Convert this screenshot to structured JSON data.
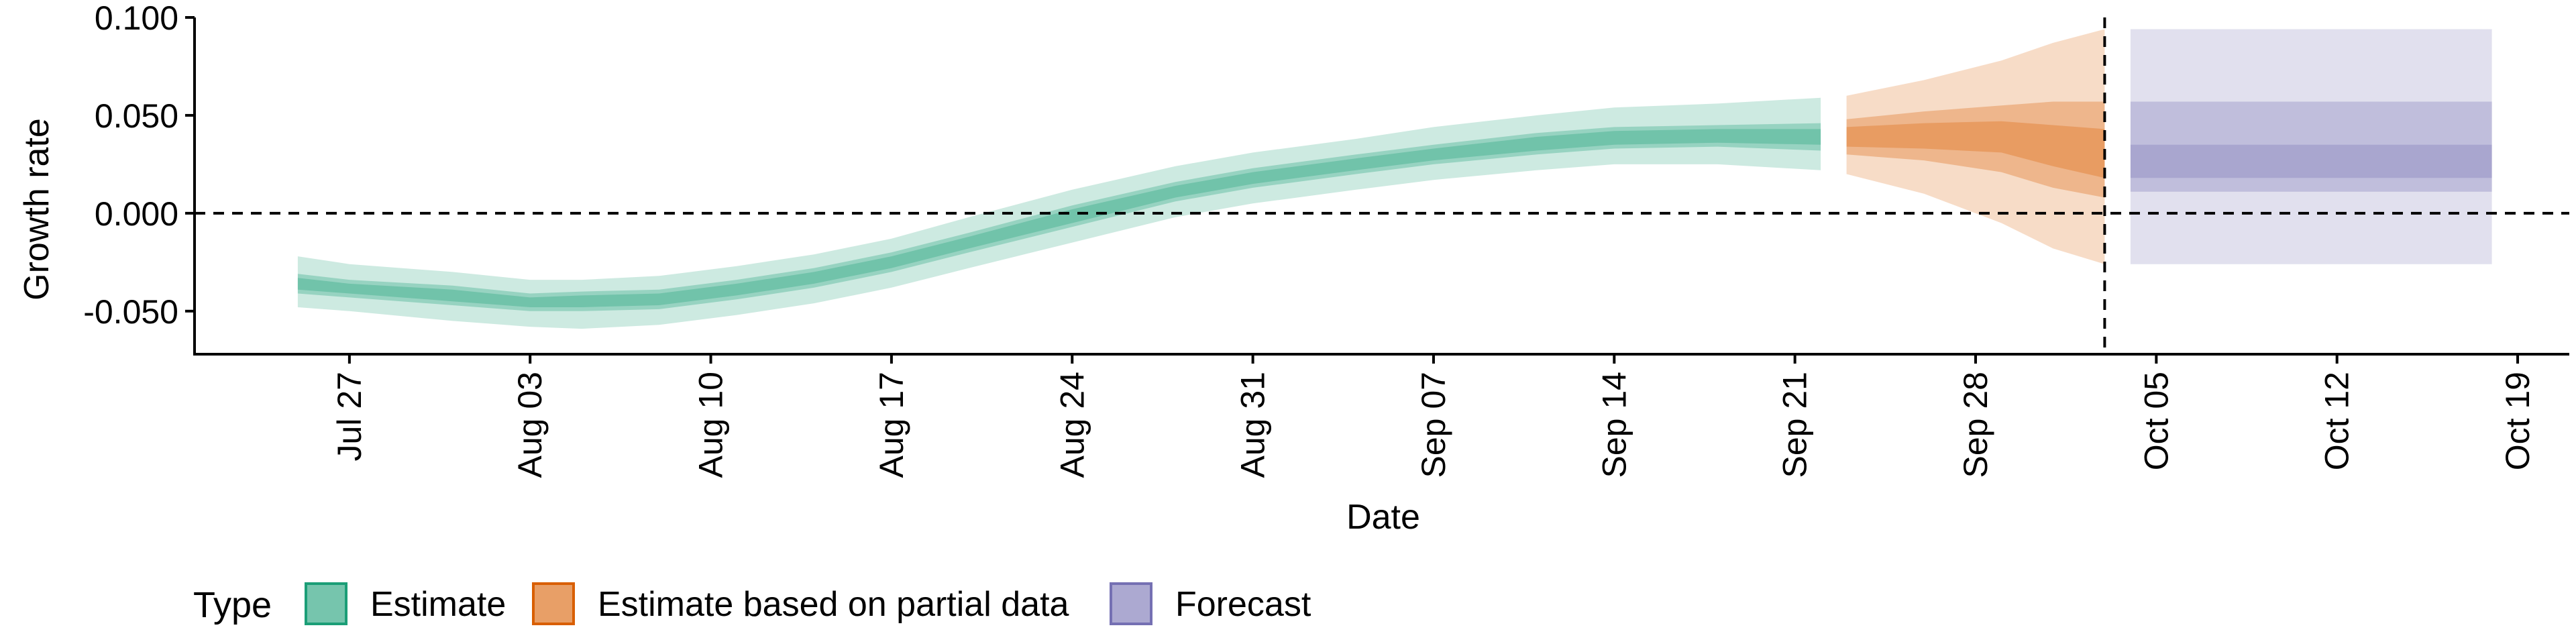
{
  "chart_data": {
    "type": "area",
    "xlabel": "Date",
    "ylabel": "Growth rate",
    "x_axis_type": "date",
    "xlim": [
      "2020-07-21",
      "2020-10-21"
    ],
    "ylim": [
      -0.072,
      0.1
    ],
    "x_ticks": [
      {
        "date": "2020-07-27",
        "label": "Jul 27"
      },
      {
        "date": "2020-08-03",
        "label": "Aug 03"
      },
      {
        "date": "2020-08-10",
        "label": "Aug 10"
      },
      {
        "date": "2020-08-17",
        "label": "Aug 17"
      },
      {
        "date": "2020-08-24",
        "label": "Aug 24"
      },
      {
        "date": "2020-08-31",
        "label": "Aug 31"
      },
      {
        "date": "2020-09-07",
        "label": "Sep 07"
      },
      {
        "date": "2020-09-14",
        "label": "Sep 14"
      },
      {
        "date": "2020-09-21",
        "label": "Sep 21"
      },
      {
        "date": "2020-09-28",
        "label": "Sep 28"
      },
      {
        "date": "2020-10-05",
        "label": "Oct 05"
      },
      {
        "date": "2020-10-12",
        "label": "Oct 12"
      },
      {
        "date": "2020-10-19",
        "label": "Oct 19"
      }
    ],
    "y_ticks": [
      {
        "value": -0.05,
        "label": "-0.050"
      },
      {
        "value": 0.0,
        "label": "0.000"
      },
      {
        "value": 0.05,
        "label": "0.050"
      },
      {
        "value": 0.1,
        "label": "0.100"
      }
    ],
    "reference_lines": {
      "horizontal_dashed_y": 0.0,
      "vertical_dashed_date": "2020-10-03"
    },
    "legend": {
      "title": "Type",
      "position": "bottom",
      "items": [
        {
          "label": "Estimate",
          "color": "#1b9e77"
        },
        {
          "label": "Estimate based on partial data",
          "color": "#d95f02"
        },
        {
          "label": "Forecast",
          "color": "#7570b3"
        }
      ]
    },
    "series": [
      {
        "name": "Estimate",
        "color": "#1b9e77",
        "points": [
          {
            "date": "2020-07-25",
            "outer": [
              -0.048,
              -0.022
            ],
            "inner": [
              -0.041,
              -0.031
            ],
            "core": [
              -0.039,
              -0.033
            ]
          },
          {
            "date": "2020-07-27",
            "outer": [
              -0.05,
              -0.026
            ],
            "inner": [
              -0.043,
              -0.034
            ],
            "core": [
              -0.041,
              -0.036
            ]
          },
          {
            "date": "2020-07-31",
            "outer": [
              -0.055,
              -0.03
            ],
            "inner": [
              -0.047,
              -0.037
            ],
            "core": [
              -0.045,
              -0.039
            ]
          },
          {
            "date": "2020-08-03",
            "outer": [
              -0.058,
              -0.034
            ],
            "inner": [
              -0.05,
              -0.041
            ],
            "core": [
              -0.048,
              -0.043
            ]
          },
          {
            "date": "2020-08-05",
            "outer": [
              -0.059,
              -0.034
            ],
            "inner": [
              -0.05,
              -0.04
            ],
            "core": [
              -0.048,
              -0.042
            ]
          },
          {
            "date": "2020-08-08",
            "outer": [
              -0.057,
              -0.032
            ],
            "inner": [
              -0.049,
              -0.039
            ],
            "core": [
              -0.047,
              -0.041
            ]
          },
          {
            "date": "2020-08-11",
            "outer": [
              -0.052,
              -0.027
            ],
            "inner": [
              -0.044,
              -0.034
            ],
            "core": [
              -0.042,
              -0.036
            ]
          },
          {
            "date": "2020-08-14",
            "outer": [
              -0.046,
              -0.021
            ],
            "inner": [
              -0.038,
              -0.028
            ],
            "core": [
              -0.036,
              -0.03
            ]
          },
          {
            "date": "2020-08-17",
            "outer": [
              -0.038,
              -0.013
            ],
            "inner": [
              -0.03,
              -0.02
            ],
            "core": [
              -0.028,
              -0.022
            ]
          },
          {
            "date": "2020-08-20",
            "outer": [
              -0.028,
              -0.002
            ],
            "inner": [
              -0.02,
              -0.01
            ],
            "core": [
              -0.018,
              -0.012
            ]
          },
          {
            "date": "2020-08-24",
            "outer": [
              -0.015,
              0.012
            ],
            "inner": [
              -0.007,
              0.004
            ],
            "core": [
              -0.005,
              0.002
            ]
          },
          {
            "date": "2020-08-28",
            "outer": [
              -0.002,
              0.024
            ],
            "inner": [
              0.006,
              0.016
            ],
            "core": [
              0.008,
              0.014
            ]
          },
          {
            "date": "2020-08-31",
            "outer": [
              0.005,
              0.031
            ],
            "inner": [
              0.013,
              0.023
            ],
            "core": [
              0.015,
              0.021
            ]
          },
          {
            "date": "2020-09-04",
            "outer": [
              0.012,
              0.038
            ],
            "inner": [
              0.02,
              0.03
            ],
            "core": [
              0.022,
              0.028
            ]
          },
          {
            "date": "2020-09-07",
            "outer": [
              0.017,
              0.044
            ],
            "inner": [
              0.025,
              0.035
            ],
            "core": [
              0.027,
              0.033
            ]
          },
          {
            "date": "2020-09-11",
            "outer": [
              0.022,
              0.05
            ],
            "inner": [
              0.03,
              0.041
            ],
            "core": [
              0.032,
              0.039
            ]
          },
          {
            "date": "2020-09-14",
            "outer": [
              0.025,
              0.054
            ],
            "inner": [
              0.033,
              0.044
            ],
            "core": [
              0.035,
              0.042
            ]
          },
          {
            "date": "2020-09-18",
            "outer": [
              0.025,
              0.056
            ],
            "inner": [
              0.034,
              0.045
            ],
            "core": [
              0.036,
              0.043
            ]
          },
          {
            "date": "2020-09-22",
            "outer": [
              0.022,
              0.059
            ],
            "inner": [
              0.032,
              0.046
            ],
            "core": [
              0.035,
              0.043
            ]
          }
        ]
      },
      {
        "name": "Estimate based on partial data",
        "color": "#d95f02",
        "points": [
          {
            "date": "2020-09-23",
            "outer": [
              0.02,
              0.06
            ],
            "inner": [
              0.03,
              0.048
            ],
            "core": [
              0.034,
              0.044
            ]
          },
          {
            "date": "2020-09-26",
            "outer": [
              0.01,
              0.068
            ],
            "inner": [
              0.027,
              0.052
            ],
            "core": [
              0.033,
              0.046
            ]
          },
          {
            "date": "2020-09-29",
            "outer": [
              -0.005,
              0.078
            ],
            "inner": [
              0.021,
              0.055
            ],
            "core": [
              0.031,
              0.047
            ]
          },
          {
            "date": "2020-10-01",
            "outer": [
              -0.018,
              0.087
            ],
            "inner": [
              0.013,
              0.057
            ],
            "core": [
              0.024,
              0.045
            ]
          },
          {
            "date": "2020-10-03",
            "outer": [
              -0.026,
              0.094
            ],
            "inner": [
              0.008,
              0.057
            ],
            "core": [
              0.018,
              0.043
            ]
          }
        ]
      },
      {
        "name": "Forecast",
        "color": "#7570b3",
        "points": [
          {
            "date": "2020-10-04",
            "outer": [
              -0.026,
              0.094
            ],
            "inner": [
              0.011,
              0.057
            ],
            "core": [
              0.018,
              0.035
            ]
          },
          {
            "date": "2020-10-18",
            "outer": [
              -0.026,
              0.094
            ],
            "inner": [
              0.011,
              0.057
            ],
            "core": [
              0.018,
              0.035
            ]
          }
        ]
      }
    ]
  }
}
